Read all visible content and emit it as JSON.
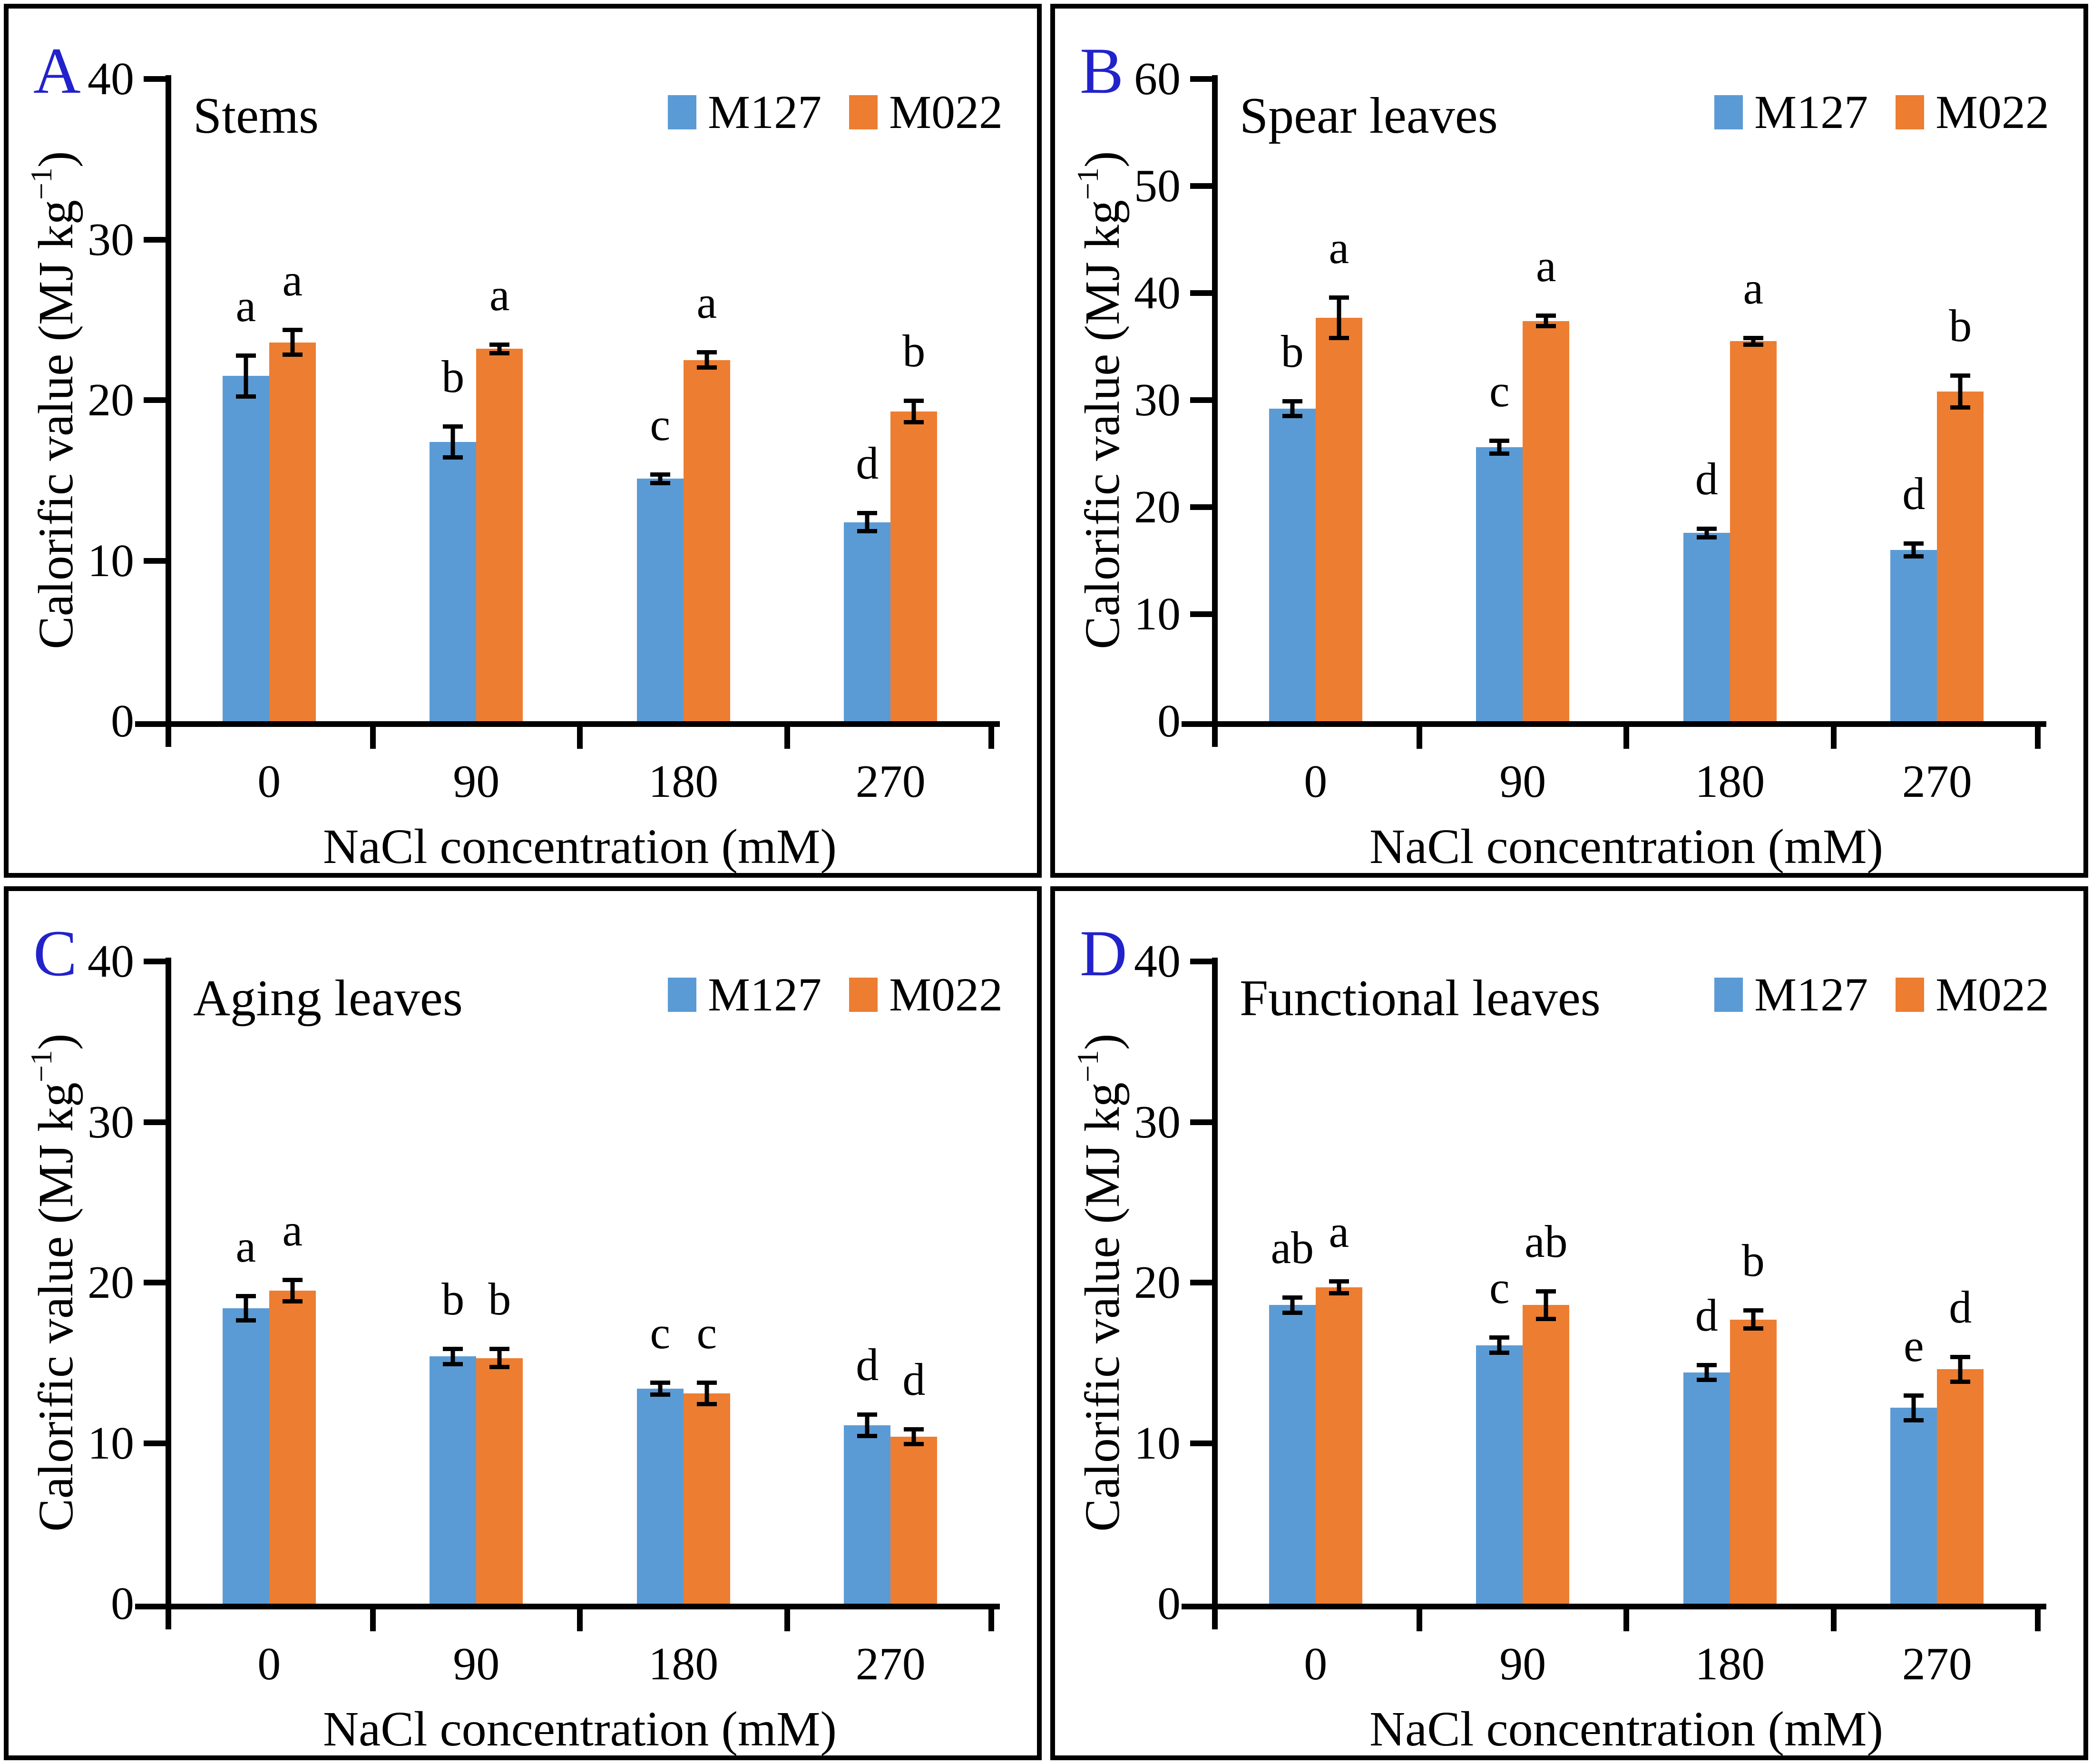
{
  "figure": {
    "background": "#ffffff",
    "panel_border_color": "#000000",
    "panel_letter_color": "#2222cc",
    "axis_color": "#000000",
    "series_colors": {
      "M127": "#5b9bd5",
      "M022": "#ed7d31"
    },
    "legend_labels": [
      "M127",
      "M022"
    ],
    "xlabel": "NaCl concentration (mM)",
    "ylabel": "Calorific value (MJ kg−1)",
    "ylabel_parts": {
      "main": "Calorific value (MJ kg",
      "sup": "−1",
      "close": ")"
    }
  },
  "chart_data": [
    {
      "type": "bar",
      "panel_letter": "A",
      "title": "Stems",
      "xlabel": "NaCl concentration (mM)",
      "ylabel": "Calorific value (MJ kg−1)",
      "categories": [
        "0",
        "90",
        "180",
        "270"
      ],
      "ylim": [
        0,
        40
      ],
      "ytick_step": 10,
      "legend_position": "top-right",
      "grid": false,
      "series": [
        {
          "name": "M127",
          "color": "#5b9bd5",
          "values": [
            21.5,
            17.4,
            15.1,
            12.4
          ],
          "errors": [
            1.4,
            1.1,
            0.4,
            0.7
          ],
          "sig_letters": [
            "a",
            "b",
            "c",
            "d"
          ]
        },
        {
          "name": "M022",
          "color": "#ed7d31",
          "values": [
            23.6,
            23.2,
            22.5,
            19.3
          ],
          "errors": [
            0.9,
            0.4,
            0.6,
            0.8
          ],
          "sig_letters": [
            "a",
            "a",
            "a",
            "b"
          ]
        }
      ]
    },
    {
      "type": "bar",
      "panel_letter": "B",
      "title": "Spear leaves",
      "xlabel": "NaCl concentration (mM)",
      "ylabel": "Calorific value (MJ kg−1)",
      "categories": [
        "0",
        "90",
        "180",
        "270"
      ],
      "ylim": [
        0,
        60
      ],
      "ytick_step": 10,
      "legend_position": "top-right",
      "grid": false,
      "series": [
        {
          "name": "M127",
          "color": "#5b9bd5",
          "values": [
            29.2,
            25.6,
            17.6,
            16.0
          ],
          "errors": [
            0.9,
            0.8,
            0.6,
            0.8
          ],
          "sig_letters": [
            "b",
            "c",
            "d",
            "d"
          ]
        },
        {
          "name": "M022",
          "color": "#ed7d31",
          "values": [
            37.7,
            37.4,
            35.5,
            30.8
          ],
          "errors": [
            2.1,
            0.7,
            0.5,
            1.7
          ],
          "sig_letters": [
            "a",
            "a",
            "a",
            "b"
          ]
        }
      ]
    },
    {
      "type": "bar",
      "panel_letter": "C",
      "title": "Aging leaves",
      "xlabel": "NaCl concentration (mM)",
      "ylabel": "Calorific value (MJ kg−1)",
      "categories": [
        "0",
        "90",
        "180",
        "270"
      ],
      "ylim": [
        0,
        40
      ],
      "ytick_step": 10,
      "legend_position": "top-right",
      "grid": false,
      "series": [
        {
          "name": "M127",
          "color": "#5b9bd5",
          "values": [
            18.4,
            15.4,
            13.4,
            11.1
          ],
          "errors": [
            0.9,
            0.6,
            0.5,
            0.8
          ],
          "sig_letters": [
            "a",
            "b",
            "c",
            "d"
          ]
        },
        {
          "name": "M022",
          "color": "#ed7d31",
          "values": [
            19.5,
            15.3,
            13.1,
            10.4
          ],
          "errors": [
            0.8,
            0.7,
            0.8,
            0.6
          ],
          "sig_letters": [
            "a",
            "b",
            "c",
            "d"
          ]
        }
      ]
    },
    {
      "type": "bar",
      "panel_letter": "D",
      "title": "Functional leaves",
      "xlabel": "NaCl concentration (mM)",
      "ylabel": "Calorific value (MJ kg−1)",
      "categories": [
        "0",
        "90",
        "180",
        "270"
      ],
      "ylim": [
        0,
        40
      ],
      "ytick_step": 10,
      "legend_position": "top-right",
      "grid": false,
      "series": [
        {
          "name": "M127",
          "color": "#5b9bd5",
          "values": [
            18.6,
            16.1,
            14.4,
            12.2
          ],
          "errors": [
            0.6,
            0.6,
            0.6,
            0.9
          ],
          "sig_letters": [
            "ab",
            "c",
            "d",
            "e"
          ]
        },
        {
          "name": "M022",
          "color": "#ed7d31",
          "values": [
            19.7,
            18.6,
            17.7,
            14.6
          ],
          "errors": [
            0.5,
            1.0,
            0.7,
            0.9
          ],
          "sig_letters": [
            "a",
            "ab",
            "b",
            "d"
          ]
        }
      ]
    }
  ]
}
